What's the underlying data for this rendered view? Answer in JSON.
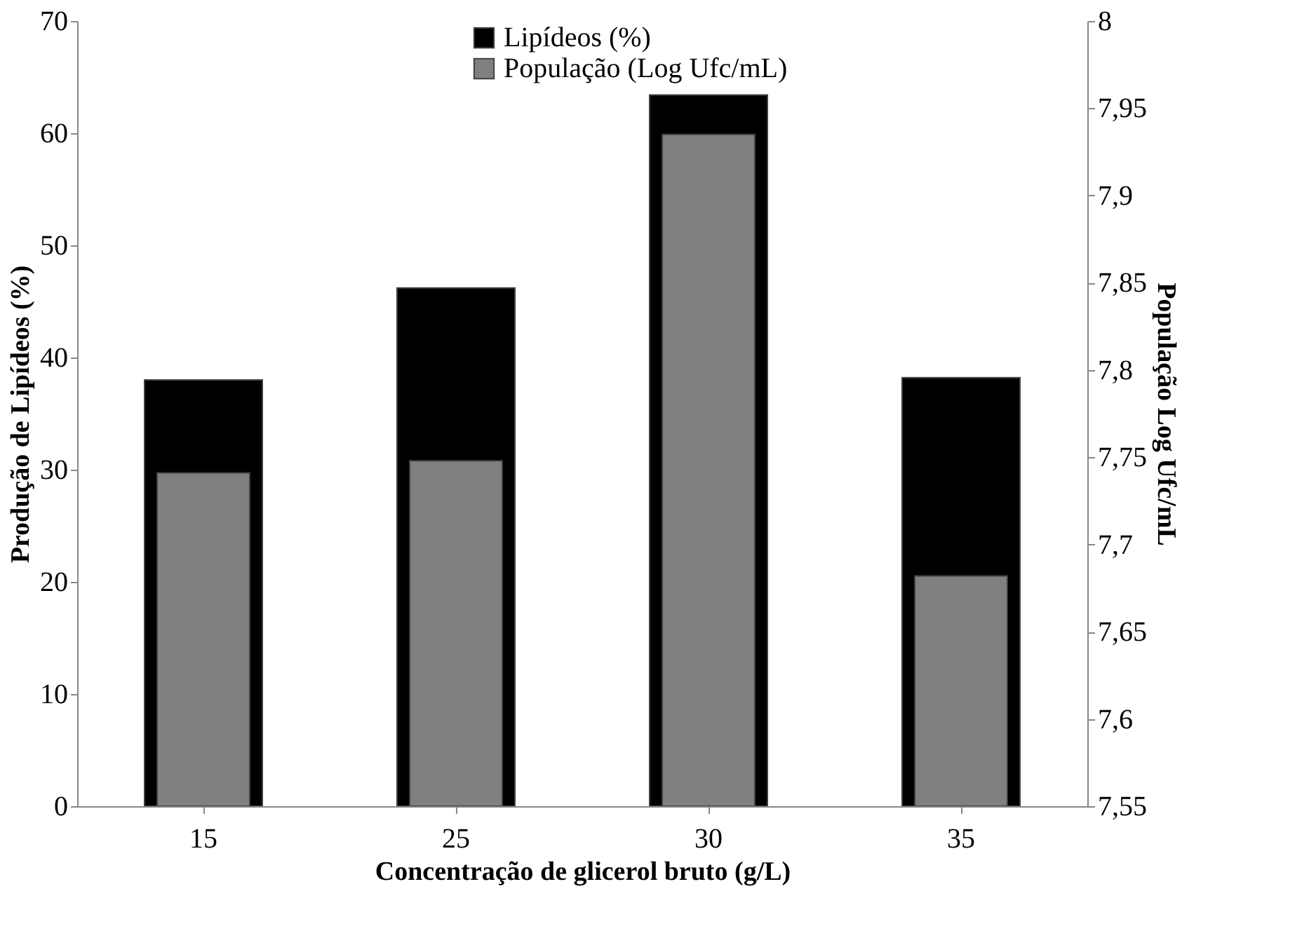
{
  "chart_data": {
    "type": "bar",
    "xlabel": "Concentração de glicerol bruto (g/L)",
    "ylabel": "Produção de Lipídeos (%)",
    "y2label": "População Log Ufc/mL",
    "categories": [
      "15",
      "25",
      "30",
      "35"
    ],
    "series": [
      {
        "name": "Lipídeos (%)",
        "color": "#000000",
        "values": [
          38.0,
          46.2,
          63.4,
          38.2
        ]
      },
      {
        "name": "População (Log Ufc/mL)",
        "color": "#808080",
        "axis": "y2",
        "values": [
          7.741,
          7.748,
          7.935,
          7.682
        ]
      }
    ],
    "ylim": [
      0,
      70
    ],
    "yticks": [
      0,
      10,
      20,
      30,
      40,
      50,
      60,
      70
    ],
    "y2lim": [
      7.55,
      8
    ],
    "y2ticks": [
      {
        "value": 7.55,
        "label": "7,55"
      },
      {
        "value": 7.6,
        "label": "7,6"
      },
      {
        "value": 7.65,
        "label": "7,65"
      },
      {
        "value": 7.7,
        "label": "7,7"
      },
      {
        "value": 7.75,
        "label": "7,75"
      },
      {
        "value": 7.8,
        "label": "7,8"
      },
      {
        "value": 7.85,
        "label": "7,85"
      },
      {
        "value": 7.9,
        "label": "7,9"
      },
      {
        "value": 7.95,
        "label": "7,95"
      },
      {
        "value": 8,
        "label": "8"
      }
    ],
    "legend": "top",
    "grid": false
  }
}
